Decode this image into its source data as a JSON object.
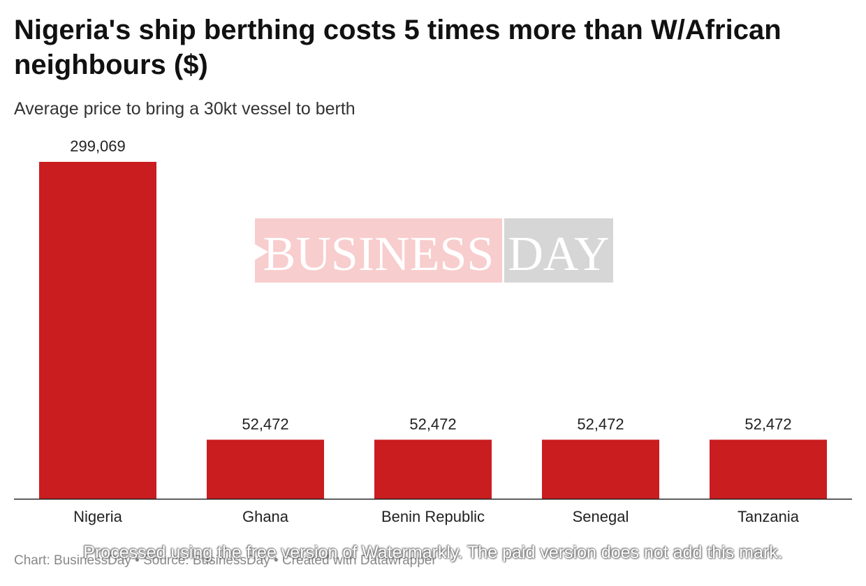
{
  "header": {
    "title": "Nigeria's ship berthing costs 5 times more than W/African neighbours ($)",
    "subtitle": "Average price to bring a 30kt vessel to berth"
  },
  "logo": {
    "part1": "BUSINESS",
    "part2": "DAY"
  },
  "footer": {
    "credit": "Chart: BusinessDay • Source: BusinessDay • Created with Datawrapper",
    "watermark_note": "Processed using the free version of Watermarkly. The paid version does not add this mark."
  },
  "colors": {
    "bar": "#c91d1f",
    "axis": "#222222",
    "label": "#222222"
  },
  "chart_data": {
    "type": "bar",
    "title": "Nigeria's ship berthing costs 5 times more than W/African neighbours ($)",
    "subtitle": "Average price to bring a 30kt vessel to berth",
    "categories": [
      "Nigeria",
      "Ghana",
      "Benin Republic",
      "Senegal",
      "Tanzania"
    ],
    "values": [
      299069,
      52472,
      52472,
      52472,
      52472
    ],
    "value_labels": [
      "299,069",
      "52,472",
      "52,472",
      "52,472",
      "52,472"
    ],
    "xlabel": "",
    "ylabel": "",
    "ylim": [
      0,
      299069
    ],
    "grid": false
  }
}
